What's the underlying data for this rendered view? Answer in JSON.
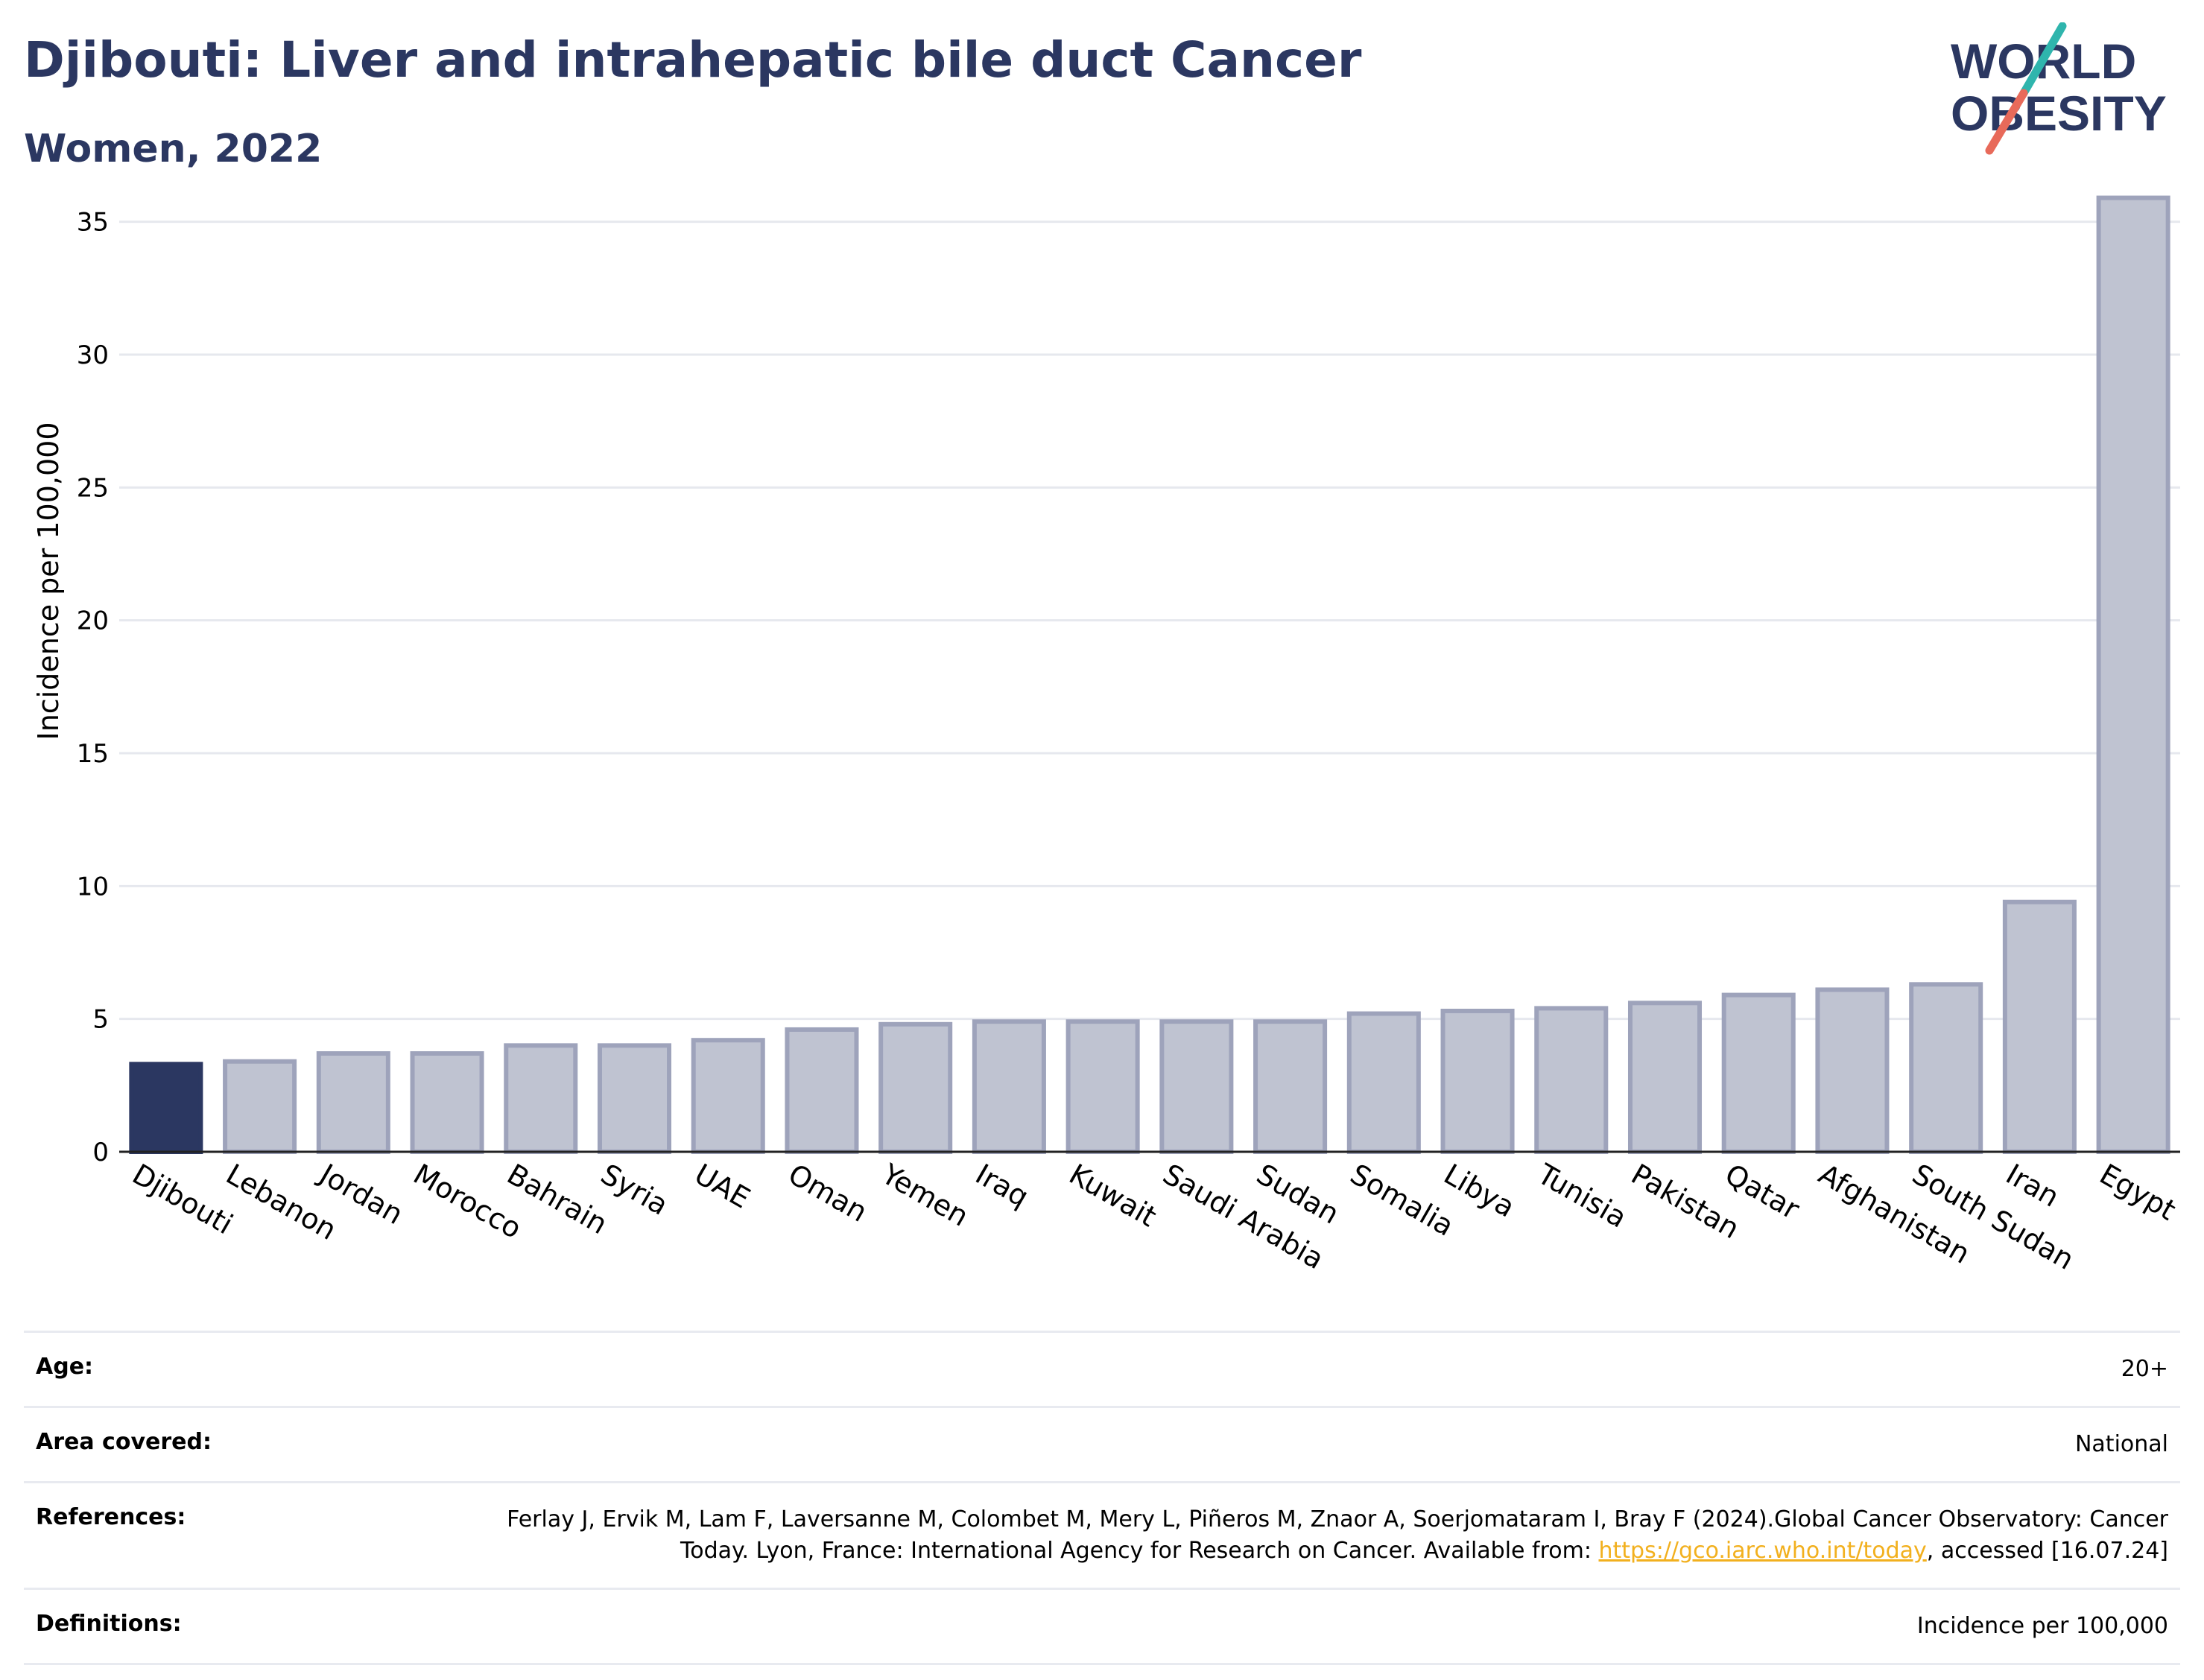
{
  "header": {
    "title": "Djibouti: Liver and intrahepatic bile duct Cancer",
    "subtitle": "Women, 2022"
  },
  "logo": {
    "line1": "WORLD",
    "line2": "OBESITY",
    "colors": {
      "text": "#2b3761",
      "slash_top": "#2fb5ad",
      "slash_bottom": "#e86a5a"
    }
  },
  "colors": {
    "highlight": "#2b3761",
    "bar_fill": "#bfc3d1",
    "bar_stroke": "#9ea3bb",
    "grid": "#e6e8ee"
  },
  "chart_data": {
    "type": "bar",
    "title": "",
    "xlabel": "",
    "ylabel": "Incidence per 100,000",
    "ylim": [
      0,
      36
    ],
    "yticks": [
      0,
      5,
      10,
      15,
      20,
      25,
      30,
      35
    ],
    "grid": true,
    "highlight": "Djibouti",
    "categories": [
      "Djibouti",
      "Lebanon",
      "Jordan",
      "Morocco",
      "Bahrain",
      "Syria",
      "UAE",
      "Oman",
      "Yemen",
      "Iraq",
      "Kuwait",
      "Saudi Arabia",
      "Sudan",
      "Somalia",
      "Libya",
      "Tunisia",
      "Pakistan",
      "Qatar",
      "Afghanistan",
      "South Sudan",
      "Iran",
      "Egypt"
    ],
    "values": [
      3.3,
      3.4,
      3.7,
      3.7,
      4.0,
      4.0,
      4.2,
      4.6,
      4.8,
      4.9,
      4.9,
      4.9,
      4.9,
      5.2,
      5.3,
      5.4,
      5.6,
      5.9,
      6.1,
      6.3,
      9.4,
      35.9
    ]
  },
  "meta": [
    {
      "label": "Age:",
      "value": "20+"
    },
    {
      "label": "Area covered:",
      "value": "National"
    },
    {
      "label": "References:",
      "value": "Ferlay J, Ervik M, Lam F, Laversanne M, Colombet M, Mery L, Piñeros M, Znaor A, Soerjomataram I, Bray F (2024).Global Cancer Observatory: Cancer Today. Lyon, France: International Agency for Research on Cancer. Available from: ",
      "link": "https://gco.iarc.who.int/today",
      "value_after": ", accessed [16.07.24]"
    },
    {
      "label": "Definitions:",
      "value": "Incidence per 100,000"
    }
  ]
}
